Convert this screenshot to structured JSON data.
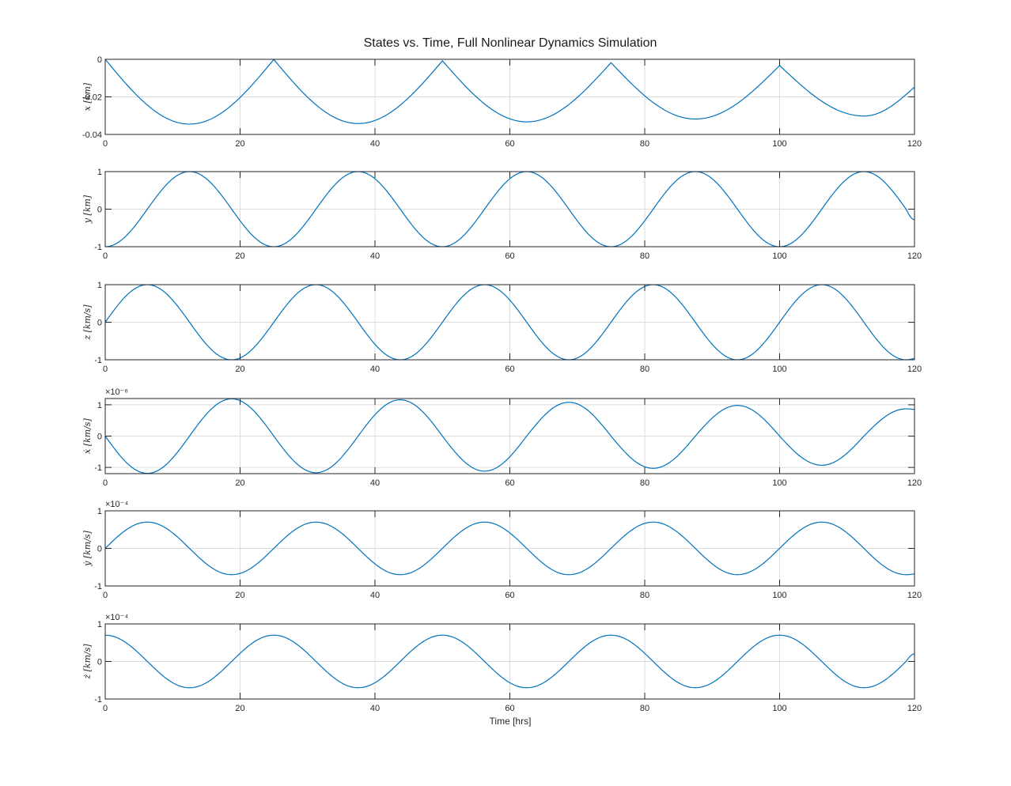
{
  "chart_data": {
    "type": "line",
    "title": "States vs. Time, Full Nonlinear Dynamics Simulation",
    "xlabel": "Time [hrs]",
    "xlim": [
      0,
      120
    ],
    "xticks": [
      0,
      20,
      40,
      60,
      80,
      100,
      120
    ],
    "grid": true,
    "panels": [
      {
        "ylabel": "x [km]",
        "ylim": [
          -0.04,
          0
        ],
        "yticks": [
          -0.04,
          -0.02,
          0
        ],
        "ytick_labels": [
          "-0.04",
          "-0.02",
          "0"
        ],
        "exponent_label": "",
        "x": [
          0,
          12.5,
          25,
          37.5,
          50,
          62.5,
          75,
          87.5,
          100,
          112.5,
          120
        ],
        "y": [
          0,
          -0.0345,
          -0.0001,
          -0.0342,
          -0.0008,
          -0.0333,
          -0.0018,
          -0.0318,
          -0.0033,
          -0.0302,
          -0.0148
        ]
      },
      {
        "ylabel": "y [km]",
        "ylim": [
          -1,
          1
        ],
        "yticks": [
          -1,
          0,
          1
        ],
        "ytick_labels": [
          "-1",
          "0",
          "1"
        ],
        "exponent_label": "",
        "x": [
          0,
          6.25,
          12.5,
          18.75,
          25,
          31.25,
          37.5,
          43.75,
          50,
          56.25,
          62.5,
          68.75,
          75,
          81.25,
          87.5,
          93.75,
          100,
          106.25,
          112.5,
          118.75,
          120
        ],
        "y": [
          -1,
          0,
          1,
          0,
          -1,
          0,
          1,
          0,
          -1,
          0,
          1,
          0,
          -1,
          0,
          1,
          0,
          -1,
          0,
          1,
          0,
          -0.28
        ]
      },
      {
        "ylabel": "z [km/s]",
        "ylim": [
          -1,
          1
        ],
        "yticks": [
          -1,
          0,
          1
        ],
        "ytick_labels": [
          "-1",
          "0",
          "1"
        ],
        "exponent_label": "",
        "x": [
          0,
          6.25,
          12.5,
          18.75,
          25,
          31.25,
          37.5,
          43.75,
          50,
          56.25,
          62.5,
          68.75,
          75,
          81.25,
          87.5,
          93.75,
          100,
          106.25,
          112.5,
          118.75,
          120
        ],
        "y": [
          0,
          1,
          0,
          -1,
          0,
          1,
          0,
          -1,
          0,
          1,
          0,
          -1,
          0,
          1,
          0,
          -1,
          0,
          1,
          0,
          -1,
          -0.96
        ]
      },
      {
        "ylabel": "ẋ [km/s]",
        "ylim": [
          -1.2,
          1.2
        ],
        "yticks": [
          -1,
          0,
          1
        ],
        "ytick_labels": [
          "-1",
          "0",
          "1"
        ],
        "exponent_label": "×10⁻⁶",
        "x": [
          0,
          6.25,
          12.5,
          18.75,
          25,
          31.25,
          37.5,
          43.75,
          50,
          56.25,
          62.5,
          68.75,
          75,
          81.25,
          87.5,
          93.75,
          100,
          106.25,
          112.5,
          118.75,
          120
        ],
        "y": [
          0,
          -1.19,
          0,
          1.19,
          0,
          -1.17,
          0,
          1.16,
          0,
          -1.12,
          0,
          1.08,
          0,
          -1.03,
          0,
          0.98,
          0,
          -0.93,
          0,
          0.87,
          0.85
        ]
      },
      {
        "ylabel": "ẏ [km/s]",
        "ylim": [
          -1,
          1
        ],
        "yticks": [
          -1,
          0,
          1
        ],
        "ytick_labels": [
          "-1",
          "0",
          "1"
        ],
        "exponent_label": "×10⁻⁴",
        "x": [
          0,
          6.25,
          12.5,
          18.75,
          25,
          31.25,
          37.5,
          43.75,
          50,
          56.25,
          62.5,
          68.75,
          75,
          81.25,
          87.5,
          93.75,
          100,
          106.25,
          112.5,
          118.75,
          120
        ],
        "y": [
          0,
          0.7,
          0,
          -0.7,
          0,
          0.7,
          0,
          -0.7,
          0,
          0.7,
          0,
          -0.7,
          0,
          0.7,
          0,
          -0.7,
          0,
          0.7,
          0,
          -0.7,
          -0.68
        ]
      },
      {
        "ylabel": "ż [km/s]",
        "ylim": [
          -1,
          1
        ],
        "yticks": [
          -1,
          0,
          1
        ],
        "ytick_labels": [
          "-1",
          "0",
          "1"
        ],
        "exponent_label": "×10⁻⁴",
        "x": [
          0,
          6.25,
          12.5,
          18.75,
          25,
          31.25,
          37.5,
          43.75,
          50,
          56.25,
          62.5,
          68.75,
          75,
          81.25,
          87.5,
          93.75,
          100,
          106.25,
          112.5,
          118.75,
          120
        ],
        "y": [
          0.7,
          0,
          -0.7,
          0,
          0.7,
          0,
          -0.7,
          0,
          0.7,
          0,
          -0.7,
          0,
          0.7,
          0,
          -0.7,
          0,
          0.7,
          0,
          -0.7,
          0,
          0.2
        ]
      }
    ]
  }
}
